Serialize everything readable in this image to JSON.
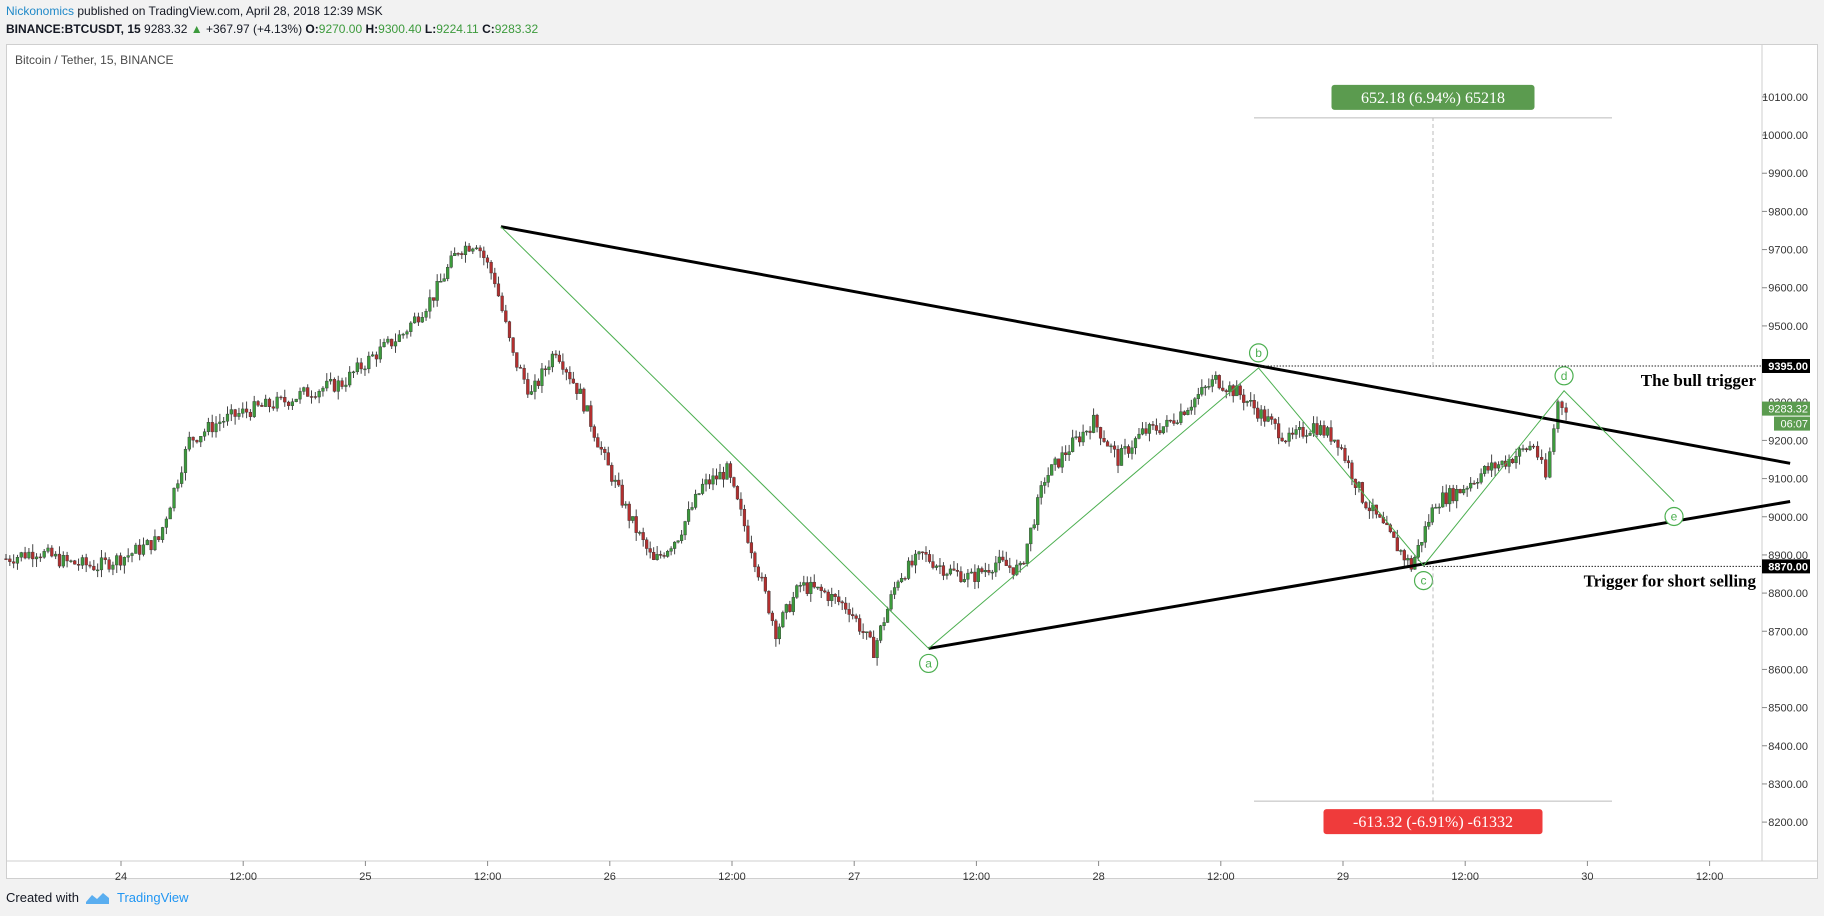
{
  "header": {
    "author": "Nickonomics",
    "published": "published on TradingView.com, April 28, 2018 12:39 MSK"
  },
  "ohlc": {
    "symbol": "BINANCE:BTCUSDT, 15",
    "last": "9283.32",
    "change": "+367.97 (+4.13%)",
    "o_label": "O:",
    "o": "9270.00",
    "h_label": "H:",
    "h": "9300.40",
    "l_label": "L:",
    "l": "9224.11",
    "c_label": "C:",
    "c": "9283.32"
  },
  "chart_title": "Bitcoin / Tether, 15, BINANCE",
  "footer": {
    "created_with": "Created with",
    "brand": "TradingView"
  },
  "colors": {
    "up": "#3c9a3c",
    "down": "#b22f2f",
    "wave": "#4caf50",
    "target_up": "#5b9b4f",
    "target_down": "#ef3b3b",
    "trendline": "#000000"
  },
  "chart_data": {
    "type": "candlestick",
    "ylim": [
      8140,
      10160
    ],
    "y_ticks": [
      "10100.00",
      "10000.00",
      "9900.00",
      "9800.00",
      "9700.00",
      "9600.00",
      "9500.00",
      "9400.00",
      "9300.00",
      "9200.00",
      "9100.00",
      "9000.00",
      "8900.00",
      "8800.00",
      "8700.00",
      "8600.00",
      "8500.00",
      "8400.00",
      "8300.00",
      "8200.00"
    ],
    "x_ticks": [
      "24",
      "12:00",
      "25",
      "12:00",
      "26",
      "12:00",
      "27",
      "12:00",
      "28",
      "12:00",
      "29",
      "12:00",
      "30",
      "12:00"
    ],
    "price_series": [
      [
        0,
        8890
      ],
      [
        0.25,
        8910
      ],
      [
        0.5,
        8880
      ],
      [
        0.75,
        8870
      ],
      [
        1,
        8900
      ],
      [
        1.25,
        8940
      ],
      [
        1.5,
        9200
      ],
      [
        1.75,
        9250
      ],
      [
        2,
        9280
      ],
      [
        2.25,
        9300
      ],
      [
        2.5,
        9330
      ],
      [
        2.75,
        9350
      ],
      [
        3,
        9420
      ],
      [
        3.25,
        9480
      ],
      [
        3.5,
        9580
      ],
      [
        3.7,
        9700
      ],
      [
        3.85,
        9720
      ],
      [
        4,
        9620
      ],
      [
        4.15,
        9420
      ],
      [
        4.3,
        9320
      ],
      [
        4.5,
        9440
      ],
      [
        4.7,
        9320
      ],
      [
        4.9,
        9150
      ],
      [
        5.1,
        9000
      ],
      [
        5.3,
        8880
      ],
      [
        5.5,
        8950
      ],
      [
        5.7,
        9080
      ],
      [
        5.9,
        9120
      ],
      [
        6.1,
        8920
      ],
      [
        6.3,
        8700
      ],
      [
        6.5,
        8820
      ],
      [
        6.7,
        8800
      ],
      [
        6.9,
        8760
      ],
      [
        7.1,
        8650
      ],
      [
        7.3,
        8840
      ],
      [
        7.5,
        8900
      ],
      [
        7.7,
        8860
      ],
      [
        7.9,
        8840
      ],
      [
        8.1,
        8880
      ],
      [
        8.3,
        8860
      ],
      [
        8.5,
        9100
      ],
      [
        8.7,
        9180
      ],
      [
        8.9,
        9250
      ],
      [
        9.1,
        9150
      ],
      [
        9.3,
        9220
      ],
      [
        9.5,
        9240
      ],
      [
        9.7,
        9300
      ],
      [
        9.9,
        9360
      ],
      [
        10.1,
        9320
      ],
      [
        10.3,
        9260
      ],
      [
        10.5,
        9200
      ],
      [
        10.7,
        9240
      ],
      [
        10.9,
        9200
      ],
      [
        11.1,
        9050
      ],
      [
        11.3,
        8960
      ],
      [
        11.5,
        8870
      ],
      [
        11.7,
        9040
      ],
      [
        11.9,
        9070
      ],
      [
        12.1,
        9120
      ],
      [
        12.3,
        9150
      ],
      [
        12.5,
        9190
      ],
      [
        12.6,
        9100
      ],
      [
        12.7,
        9300
      ],
      [
        12.8,
        9283.32
      ]
    ],
    "last_price": "9283.32",
    "countdown": "06:07",
    "levels": [
      {
        "price": 9395,
        "label": "9395.00",
        "name": "The bull trigger"
      },
      {
        "price": 8870,
        "label": "8870.00",
        "name": "Trigger for short selling"
      }
    ],
    "trendlines": [
      {
        "from": [
          4.05,
          9760
        ],
        "to": [
          14.6,
          9140
        ]
      },
      {
        "from": [
          7.55,
          8655
        ],
        "to": [
          14.6,
          9040
        ]
      }
    ],
    "waves": [
      {
        "label": "a",
        "x": 7.55,
        "price": 8655
      },
      {
        "label": "b",
        "x": 10.25,
        "price": 9390
      },
      {
        "label": "c",
        "x": 11.6,
        "price": 8872
      },
      {
        "label": "d",
        "x": 12.75,
        "price": 9330
      },
      {
        "label": "e",
        "x": 13.65,
        "price": 9040
      }
    ],
    "wave_start": {
      "x": 4.05,
      "price": 9760
    },
    "targets": [
      {
        "text": "652.18 (6.94%) 65218",
        "price": 10050,
        "direction": "up"
      },
      {
        "text": "-613.32 (-6.91%) -61332",
        "price": 8255,
        "direction": "down"
      }
    ]
  }
}
